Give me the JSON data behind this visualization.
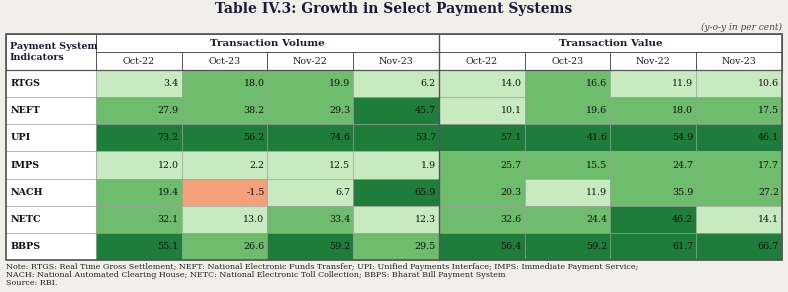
{
  "title": "Table IV.3: Growth in Select Payment Systems",
  "subtitle": "(y-o-y in per cent)",
  "col_headers": [
    "Oct-22",
    "Oct-23",
    "Nov-22",
    "Nov-23",
    "Oct-22",
    "Oct-23",
    "Nov-22",
    "Nov-23"
  ],
  "row_labels": [
    "RTGS",
    "NEFT",
    "UPI",
    "IMPS",
    "NACH",
    "NETC",
    "BBPS"
  ],
  "data": [
    [
      3.4,
      18.0,
      19.9,
      6.2,
      14.0,
      16.6,
      11.9,
      10.6
    ],
    [
      27.9,
      38.2,
      29.3,
      45.7,
      10.1,
      19.6,
      18.0,
      17.5
    ],
    [
      73.2,
      56.2,
      74.6,
      53.7,
      57.1,
      41.6,
      54.9,
      46.1
    ],
    [
      12.0,
      2.2,
      12.5,
      1.9,
      25.7,
      15.5,
      24.7,
      17.7
    ],
    [
      19.4,
      -1.5,
      6.7,
      65.9,
      20.3,
      11.9,
      35.9,
      27.2
    ],
    [
      32.1,
      13.0,
      33.4,
      12.3,
      32.6,
      24.4,
      46.2,
      14.1
    ],
    [
      55.1,
      26.6,
      59.2,
      29.5,
      56.4,
      59.2,
      61.7,
      66.7
    ]
  ],
  "note_line1": "Note: RTGS: Real Time Gross Settlement; NEFT: National Electronic Funds Transfer; UPI: Unified Payments Interface; IMPS: Immediate Payment Service;",
  "note_line2": "NACH: National Automated Clearing House; NETC: National Electronic Toll Collection; BBPS: Bharat Bill Payment System",
  "note_line3": "Source: RBI.",
  "bg_color": "#f0efe8",
  "white": "#ffffff",
  "border_color": "#555555",
  "cell_border": "#999999",
  "negative_color": "#f4a07a",
  "green_low": "#c8eac0",
  "green_mid": "#6dbd6d",
  "green_high": "#1e7d3a",
  "title_color": "#1a1a3e",
  "text_dark": "#111111",
  "note_color": "#222222",
  "thresholds": [
    0,
    15,
    40
  ]
}
